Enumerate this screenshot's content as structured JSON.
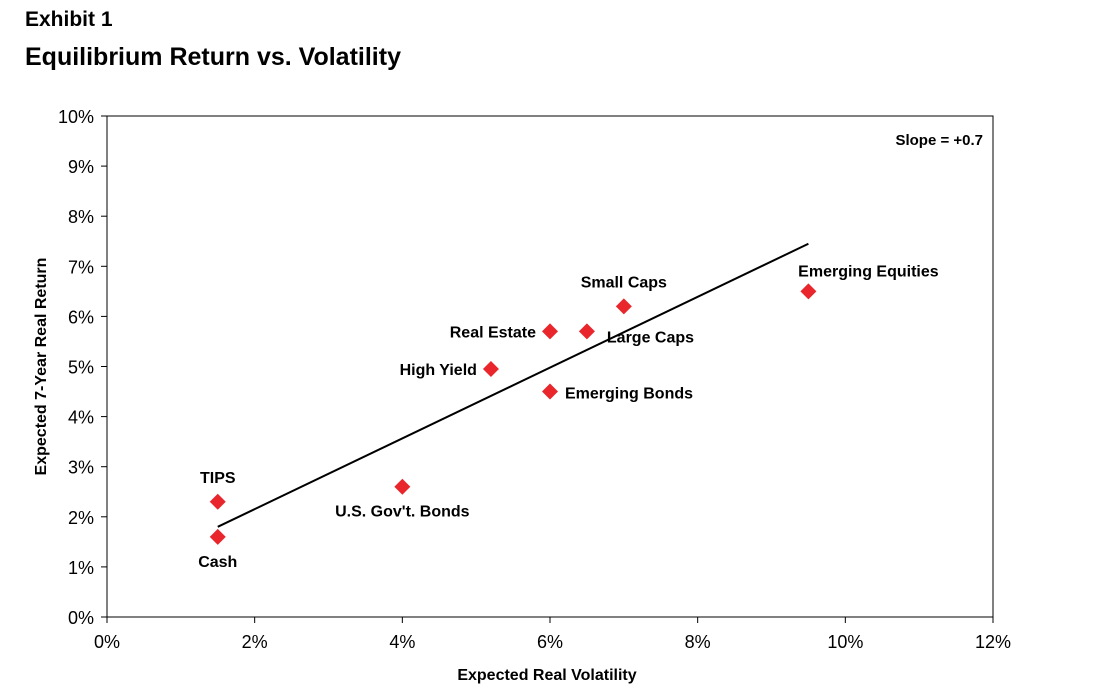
{
  "header": {
    "exhibit": "Exhibit 1",
    "title": "Equilibrium Return vs. Volatility"
  },
  "chart_data": {
    "type": "scatter",
    "title": "Equilibrium Return vs. Volatility",
    "xlabel": "Expected Real Volatility",
    "ylabel": "Expected 7-Year Real Return",
    "xlim": [
      0,
      12
    ],
    "ylim": [
      0,
      10
    ],
    "x_ticks": [
      0,
      2,
      4,
      6,
      8,
      10,
      12
    ],
    "y_ticks": [
      0,
      1,
      2,
      3,
      4,
      5,
      6,
      7,
      8,
      9,
      10
    ],
    "x_tick_labels": [
      "0%",
      "2%",
      "4%",
      "6%",
      "8%",
      "10%",
      "12%"
    ],
    "y_tick_labels": [
      "0%",
      "1%",
      "2%",
      "3%",
      "4%",
      "5%",
      "6%",
      "7%",
      "8%",
      "9%",
      "10%"
    ],
    "grid": false,
    "marker_color": "#e8262b",
    "points": [
      {
        "label": "Cash",
        "x": 1.5,
        "y": 1.6,
        "label_pos": "below"
      },
      {
        "label": "TIPS",
        "x": 1.5,
        "y": 2.3,
        "label_pos": "above"
      },
      {
        "label": "U.S. Gov't. Bonds",
        "x": 4.0,
        "y": 2.6,
        "label_pos": "below"
      },
      {
        "label": "High Yield",
        "x": 5.2,
        "y": 4.95,
        "label_pos": "left"
      },
      {
        "label": "Real Estate",
        "x": 6.0,
        "y": 5.7,
        "label_pos": "left"
      },
      {
        "label": "Emerging Bonds",
        "x": 6.0,
        "y": 4.5,
        "label_pos": "right"
      },
      {
        "label": "Large Caps",
        "x": 6.5,
        "y": 5.7,
        "label_pos": "below-right"
      },
      {
        "label": "Small Caps",
        "x": 7.0,
        "y": 6.2,
        "label_pos": "above"
      },
      {
        "label": "Emerging Equities",
        "x": 9.5,
        "y": 6.5,
        "label_pos": "above-right"
      }
    ],
    "trendline": {
      "x": [
        1.5,
        9.5
      ],
      "y": [
        1.8,
        7.45
      ],
      "color": "#000000"
    },
    "annotations": [
      {
        "text": "Slope = +0.7",
        "position": "top-right"
      }
    ]
  }
}
